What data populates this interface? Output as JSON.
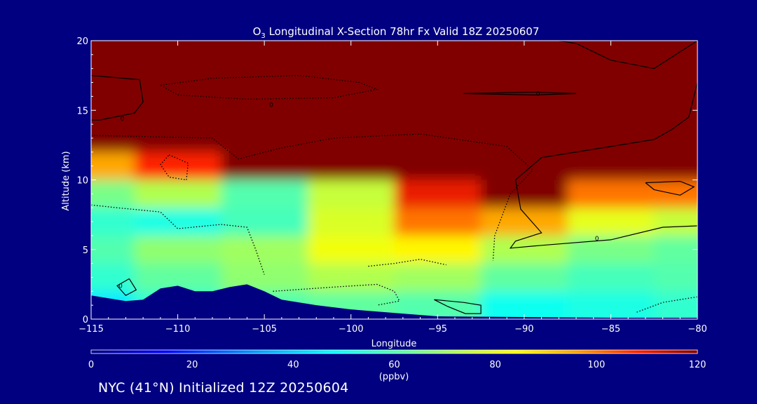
{
  "chart_data": {
    "type": "heatmap",
    "title_parts": {
      "species": "O",
      "subscript": "3",
      "rest": " Longitudinal X-Section 78hr  Fx Valid 18Z 20250607"
    },
    "xlabel": "Longitude",
    "ylabel": "Altitude (km)",
    "xlim": [
      -115,
      -80
    ],
    "ylim": [
      0,
      20
    ],
    "x_ticks": [
      -115,
      -110,
      -105,
      -100,
      -95,
      -90,
      -85,
      -80
    ],
    "x_tick_labels": [
      "−115",
      "−110",
      "−105",
      "−100",
      "−95",
      "−90",
      "−85",
      "−80"
    ],
    "y_ticks": [
      0,
      5,
      10,
      15,
      20
    ],
    "y_tick_labels": [
      "0",
      "5",
      "10",
      "15",
      "20"
    ],
    "colorbar": {
      "min": 0,
      "max": 120,
      "ticks": [
        0,
        20,
        40,
        60,
        80,
        100,
        120
      ],
      "tick_labels": [
        "0",
        "20",
        "40",
        "60",
        "80",
        "100",
        "120"
      ],
      "units": "(ppbv)"
    },
    "contour_label": "0",
    "ozone_field": {
      "units": "ppbv",
      "longitudes": [
        -115,
        -110,
        -105,
        -100,
        -95,
        -90,
        -85,
        -80
      ],
      "rows": [
        {
          "altitude_km": 1,
          "values": [
            45,
            55,
            60,
            62,
            60,
            50,
            52,
            55
          ]
        },
        {
          "altitude_km": 3,
          "values": [
            55,
            62,
            68,
            72,
            70,
            62,
            58,
            60
          ]
        },
        {
          "altitude_km": 5,
          "values": [
            60,
            68,
            70,
            82,
            85,
            72,
            65,
            62
          ]
        },
        {
          "altitude_km": 7,
          "values": [
            55,
            52,
            58,
            78,
            100,
            95,
            80,
            75
          ]
        },
        {
          "altitude_km": 9,
          "values": [
            65,
            72,
            60,
            75,
            110,
            120,
            100,
            100
          ]
        },
        {
          "altitude_km": 11,
          "values": [
            95,
            108,
            120,
            120,
            120,
            120,
            120,
            120
          ]
        },
        {
          "altitude_km": 13,
          "values": [
            120,
            120,
            120,
            120,
            120,
            120,
            120,
            120
          ]
        },
        {
          "altitude_km": 17,
          "values": [
            120,
            120,
            120,
            120,
            120,
            120,
            120,
            120
          ]
        }
      ]
    },
    "terrain_km": [
      {
        "lon": -115,
        "alt": 1.7
      },
      {
        "lon": -113,
        "alt": 1.3
      },
      {
        "lon": -112,
        "alt": 1.4
      },
      {
        "lon": -111,
        "alt": 2.2
      },
      {
        "lon": -110,
        "alt": 2.4
      },
      {
        "lon": -109,
        "alt": 2.0
      },
      {
        "lon": -108,
        "alt": 2.0
      },
      {
        "lon": -107,
        "alt": 2.3
      },
      {
        "lon": -106,
        "alt": 2.5
      },
      {
        "lon": -105,
        "alt": 2.0
      },
      {
        "lon": -104,
        "alt": 1.4
      },
      {
        "lon": -102,
        "alt": 1.0
      },
      {
        "lon": -100,
        "alt": 0.7
      },
      {
        "lon": -97,
        "alt": 0.4
      },
      {
        "lon": -95,
        "alt": 0.2
      },
      {
        "lon": -90,
        "alt": 0.15
      },
      {
        "lon": -85,
        "alt": 0.1
      },
      {
        "lon": -80,
        "alt": 0.1
      }
    ]
  },
  "footer": {
    "text": "NYC (41°N) Initialized 12Z 20250604"
  },
  "colors": {
    "background": "#000080",
    "stratosphere": "#800000",
    "foreground": "#ffffff",
    "contour": "#000000"
  }
}
